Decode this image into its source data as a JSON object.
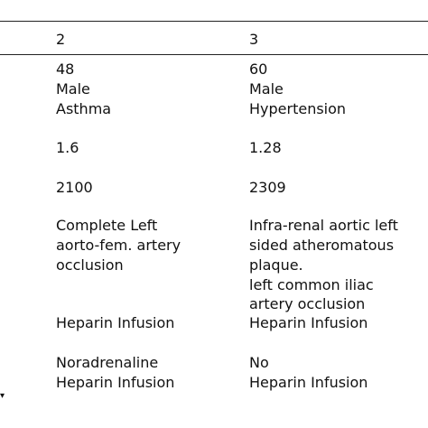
{
  "table": {
    "headers": [
      "2",
      "3"
    ],
    "columns": [
      {
        "age": "48",
        "sex": "Male",
        "history": "Asthma",
        "value_a": "1.6",
        "value_b": "2100",
        "finding": [
          "Complete Left",
          "aorto-fem. artery",
          "occlusion"
        ],
        "treatment": "Heparin Infusion",
        "support": "Noradrenaline",
        "anticoag": "Heparin Infusion"
      },
      {
        "age": "60",
        "sex": "Male",
        "history": "Hypertension",
        "value_a": "1.28",
        "value_b": "2309",
        "finding": [
          "Infra-renal aortic left",
          "sided atheromatous",
          "plaque.",
          "left common iliac",
          "artery occlusion"
        ],
        "treatment": "Heparin Infusion",
        "support": "No",
        "anticoag": "Heparin Infusion"
      }
    ]
  },
  "footnote_mark": "▾"
}
